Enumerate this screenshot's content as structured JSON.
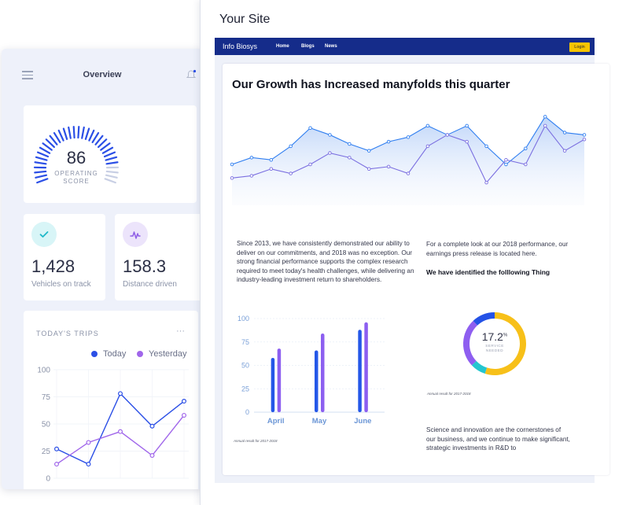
{
  "phone": {
    "title": "Overview",
    "score": {
      "value": "86",
      "label_line1": "OPERATING",
      "label_line2": "SCORE"
    },
    "stats": [
      {
        "value": "1,428",
        "label": "Vehicles on track",
        "icon": "check-icon",
        "icon_bg": "#d8f5f7",
        "icon_color": "#1fb8c8"
      },
      {
        "value": "158.3",
        "label": "Distance driven",
        "icon": "pulse-icon",
        "icon_bg": "#ece4fb",
        "icon_color": "#8f5fe6"
      }
    ],
    "trips": {
      "title": "TODAY'S TRIPS",
      "more": "···",
      "legend": [
        {
          "name": "Today",
          "color": "#2b4fe6"
        },
        {
          "name": "Yesterday",
          "color": "#a066ea"
        }
      ]
    }
  },
  "browser": {
    "site_title": "Your Site",
    "nav": {
      "brand": "Info Biosys",
      "links": [
        "Home",
        "Blogs",
        "News"
      ],
      "login": "Login"
    },
    "headline": "Our Growth has Increased manyfolds this quarter",
    "para1": "Since 2013, we have consistently demonstrated our ability to deliver on our commitments, and 2018 was no exception. Our strong financial performance supports the complex research required to meet today's health challenges, while delivering an industry-leading investment return to shareholders.",
    "para2": "For a complete look at our 2018 performance, our earnings press release is located here.",
    "subheading": "We have identified the folllowing Thing",
    "caption_bar": "Annual result for 2017-2018",
    "caption_donut": "Annual result for 2017-2018",
    "donut": {
      "value": "17.2",
      "unit": "%",
      "label_line1": "SERVICE",
      "label_line2": "NEEDED"
    },
    "para3": "Science and innovation are the cornerstones of our business, and we continue to make significant, strategic investments in R&D to"
  },
  "chart_data": [
    {
      "type": "line",
      "title": "",
      "series": [
        {
          "values": [
            36,
            42,
            40,
            52,
            68,
            62,
            54,
            48,
            56,
            60,
            70,
            62,
            70,
            52,
            36,
            50,
            78,
            64,
            62
          ],
          "color": "#2f7ef0"
        },
        {
          "values": [
            24,
            26,
            32,
            28,
            36,
            46,
            42,
            32,
            34,
            28,
            52,
            62,
            56,
            20,
            40,
            36,
            70,
            48,
            58
          ],
          "color": "#7b6fe0"
        }
      ]
    },
    {
      "type": "bar",
      "categories": [
        "April",
        "May",
        "June"
      ],
      "ylim": [
        0,
        100
      ],
      "yticks": [
        0,
        25,
        50,
        75,
        100
      ],
      "series": [
        {
          "values": [
            58,
            66,
            88
          ],
          "color": "#2457e8"
        },
        {
          "values": [
            68,
            84,
            96
          ],
          "color": "#8c5ff0"
        }
      ]
    },
    {
      "type": "pie",
      "donut": true,
      "slices": [
        {
          "value": 55,
          "color": "#f7c019"
        },
        {
          "value": 8,
          "color": "#24c6cf"
        },
        {
          "value": 25,
          "color": "#8e5ef0"
        },
        {
          "value": 12,
          "color": "#2452e6"
        }
      ]
    },
    {
      "type": "line",
      "ylim": [
        0,
        100
      ],
      "yticks": [
        0,
        25,
        50,
        75,
        100
      ],
      "series": [
        {
          "name": "Today",
          "values": [
            27,
            13,
            78,
            48,
            71
          ],
          "color": "#2b4fe6"
        },
        {
          "name": "Yesterday",
          "values": [
            13,
            33,
            43,
            21,
            58
          ],
          "color": "#a066ea"
        }
      ]
    },
    {
      "type": "bar",
      "title": "",
      "segments": 32,
      "fill_fraction": 0.86,
      "active_color": "#2b4fe6",
      "inactive_color": "#c8cfe4"
    }
  ]
}
